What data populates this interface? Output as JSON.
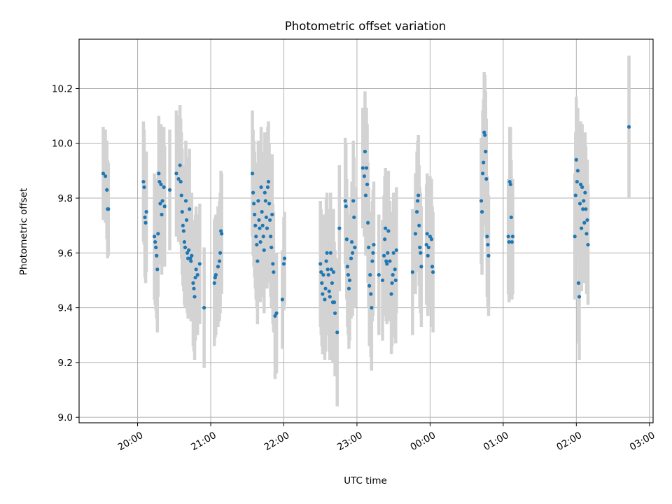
{
  "chart_data": {
    "type": "scatter",
    "title": "Photometric offset variation",
    "xlabel": "UTC time",
    "ylabel": "Photometric offset",
    "x_unit": "UTC time (hours after midnight; 24+ is next day)",
    "xlim": [
      19.2,
      27.05
    ],
    "ylim": [
      8.98,
      10.38
    ],
    "grid": true,
    "x_ticks": [
      {
        "value": 20,
        "label": "20:00"
      },
      {
        "value": 21,
        "label": "21:00"
      },
      {
        "value": 22,
        "label": "22:00"
      },
      {
        "value": 23,
        "label": "23:00"
      },
      {
        "value": 24,
        "label": "00:00"
      },
      {
        "value": 25,
        "label": "01:00"
      },
      {
        "value": 26,
        "label": "02:00"
      },
      {
        "value": 27,
        "label": "03:00"
      }
    ],
    "y_ticks": [
      {
        "value": 9.0,
        "label": "9.0"
      },
      {
        "value": 9.2,
        "label": "9.2"
      },
      {
        "value": 9.4,
        "label": "9.4"
      },
      {
        "value": 9.6,
        "label": "9.6"
      },
      {
        "value": 9.8,
        "label": "9.8"
      },
      {
        "value": 10.0,
        "label": "10.0"
      },
      {
        "value": 10.2,
        "label": "10.2"
      }
    ],
    "colors": {
      "points": "#1f77b4",
      "error_bars": "#d3d3d3",
      "grid": "#b0b0b0"
    },
    "series": [
      {
        "points": [
          [
            19.53,
            9.89,
            0.17
          ],
          [
            19.56,
            9.88,
            0.17
          ],
          [
            19.58,
            9.83,
            0.18
          ],
          [
            19.59,
            9.76,
            0.18
          ],
          [
            19.6,
            9.76,
            0.17
          ],
          [
            20.08,
            9.86,
            0.22
          ],
          [
            20.09,
            9.84,
            0.21
          ],
          [
            20.1,
            9.73,
            0.22
          ],
          [
            20.11,
            9.71,
            0.22
          ],
          [
            20.12,
            9.75,
            0.22
          ],
          [
            20.23,
            9.66,
            0.23
          ],
          [
            20.24,
            9.64,
            0.23
          ],
          [
            20.25,
            9.62,
            0.23
          ],
          [
            20.26,
            9.59,
            0.23
          ],
          [
            20.27,
            9.54,
            0.23
          ],
          [
            20.28,
            9.67,
            0.23
          ],
          [
            20.29,
            9.89,
            0.21
          ],
          [
            20.3,
            9.86,
            0.21
          ],
          [
            20.31,
            9.78,
            0.22
          ],
          [
            20.32,
            9.85,
            0.22
          ],
          [
            20.33,
            9.74,
            0.22
          ],
          [
            20.34,
            9.79,
            0.22
          ],
          [
            20.36,
            9.84,
            0.22
          ],
          [
            20.37,
            9.77,
            0.22
          ],
          [
            20.44,
            9.83,
            0.22
          ],
          [
            20.53,
            9.89,
            0.23
          ],
          [
            20.56,
            9.87,
            0.23
          ],
          [
            20.58,
            9.92,
            0.22
          ],
          [
            20.59,
            9.86,
            0.23
          ],
          [
            20.6,
            9.81,
            0.23
          ],
          [
            20.61,
            9.75,
            0.23
          ],
          [
            20.62,
            9.7,
            0.22
          ],
          [
            20.63,
            9.68,
            0.22
          ],
          [
            20.64,
            9.64,
            0.23
          ],
          [
            20.65,
            9.62,
            0.22
          ],
          [
            20.66,
            9.79,
            0.22
          ],
          [
            20.67,
            9.72,
            0.23
          ],
          [
            20.68,
            9.6,
            0.22
          ],
          [
            20.69,
            9.58,
            0.22
          ],
          [
            20.7,
            9.61,
            0.22
          ],
          [
            20.71,
            9.76,
            0.22
          ],
          [
            20.72,
            9.58,
            0.22
          ],
          [
            20.73,
            9.57,
            0.22
          ],
          [
            20.74,
            9.59,
            0.23
          ],
          [
            20.76,
            9.49,
            0.23
          ],
          [
            20.77,
            9.47,
            0.23
          ],
          [
            20.78,
            9.44,
            0.23
          ],
          [
            20.79,
            9.51,
            0.23
          ],
          [
            20.8,
            9.54,
            0.23
          ],
          [
            20.82,
            9.52,
            0.22
          ],
          [
            20.85,
            9.56,
            0.22
          ],
          [
            20.91,
            9.4,
            0.22
          ],
          [
            21.05,
            9.49,
            0.23
          ],
          [
            21.06,
            9.51,
            0.22
          ],
          [
            21.07,
            9.52,
            0.22
          ],
          [
            21.1,
            9.55,
            0.22
          ],
          [
            21.12,
            9.57,
            0.22
          ],
          [
            21.13,
            9.6,
            0.22
          ],
          [
            21.14,
            9.68,
            0.22
          ],
          [
            21.15,
            9.67,
            0.22
          ],
          [
            21.57,
            9.89,
            0.23
          ],
          [
            21.58,
            9.82,
            0.23
          ],
          [
            21.59,
            9.78,
            0.23
          ],
          [
            21.6,
            9.74,
            0.23
          ],
          [
            21.61,
            9.7,
            0.23
          ],
          [
            21.62,
            9.66,
            0.23
          ],
          [
            21.63,
            9.63,
            0.23
          ],
          [
            21.64,
            9.57,
            0.23
          ],
          [
            21.65,
            9.79,
            0.22
          ],
          [
            21.66,
            9.72,
            0.22
          ],
          [
            21.67,
            9.69,
            0.23
          ],
          [
            21.68,
            9.64,
            0.22
          ],
          [
            21.69,
            9.84,
            0.22
          ],
          [
            21.7,
            9.75,
            0.22
          ],
          [
            21.71,
            9.7,
            0.22
          ],
          [
            21.72,
            9.66,
            0.22
          ],
          [
            21.73,
            9.61,
            0.23
          ],
          [
            21.74,
            9.82,
            0.22
          ],
          [
            21.75,
            9.79,
            0.22
          ],
          [
            21.76,
            9.73,
            0.22
          ],
          [
            21.77,
            9.69,
            0.22
          ],
          [
            21.78,
            9.84,
            0.22
          ],
          [
            21.79,
            9.86,
            0.22
          ],
          [
            21.8,
            9.78,
            0.22
          ],
          [
            21.81,
            9.72,
            0.23
          ],
          [
            21.82,
            9.66,
            0.22
          ],
          [
            21.83,
            9.62,
            0.22
          ],
          [
            21.84,
            9.74,
            0.22
          ],
          [
            21.85,
            9.56,
            0.22
          ],
          [
            21.86,
            9.53,
            0.22
          ],
          [
            21.88,
            9.37,
            0.23
          ],
          [
            21.9,
            9.38,
            0.22
          ],
          [
            21.98,
            9.43,
            0.18
          ],
          [
            22.0,
            9.56,
            0.17
          ],
          [
            22.01,
            9.58,
            0.17
          ],
          [
            22.5,
            9.56,
            0.23
          ],
          [
            22.51,
            9.53,
            0.23
          ],
          [
            22.52,
            9.49,
            0.23
          ],
          [
            22.53,
            9.45,
            0.22
          ],
          [
            22.54,
            9.52,
            0.22
          ],
          [
            22.56,
            9.43,
            0.22
          ],
          [
            22.57,
            9.47,
            0.23
          ],
          [
            22.58,
            9.57,
            0.23
          ],
          [
            22.59,
            9.6,
            0.22
          ],
          [
            22.6,
            9.54,
            0.22
          ],
          [
            22.61,
            9.52,
            0.22
          ],
          [
            22.62,
            9.46,
            0.22
          ],
          [
            22.63,
            9.44,
            0.23
          ],
          [
            22.64,
            9.6,
            0.22
          ],
          [
            22.65,
            9.54,
            0.22
          ],
          [
            22.66,
            9.49,
            0.23
          ],
          [
            22.67,
            9.42,
            0.22
          ],
          [
            22.68,
            9.53,
            0.23
          ],
          [
            22.69,
            9.42,
            0.22
          ],
          [
            22.7,
            9.38,
            0.23
          ],
          [
            22.73,
            9.31,
            0.27
          ],
          [
            22.76,
            9.69,
            0.23
          ],
          [
            22.84,
            9.79,
            0.23
          ],
          [
            22.85,
            9.77,
            0.23
          ],
          [
            22.86,
            9.65,
            0.22
          ],
          [
            22.87,
            9.55,
            0.22
          ],
          [
            22.88,
            9.52,
            0.22
          ],
          [
            22.89,
            9.47,
            0.22
          ],
          [
            22.9,
            9.5,
            0.22
          ],
          [
            22.92,
            9.58,
            0.22
          ],
          [
            22.93,
            9.64,
            0.22
          ],
          [
            22.94,
            9.6,
            0.23
          ],
          [
            22.95,
            9.79,
            0.22
          ],
          [
            22.96,
            9.73,
            0.22
          ],
          [
            22.97,
            9.62,
            0.22
          ],
          [
            23.08,
            9.91,
            0.22
          ],
          [
            23.1,
            9.88,
            0.22
          ],
          [
            23.11,
            9.97,
            0.22
          ],
          [
            23.12,
            9.81,
            0.22
          ],
          [
            23.13,
            9.91,
            0.22
          ],
          [
            23.14,
            9.85,
            0.22
          ],
          [
            23.15,
            9.71,
            0.22
          ],
          [
            23.16,
            9.62,
            0.22
          ],
          [
            23.17,
            9.48,
            0.22
          ],
          [
            23.18,
            9.52,
            0.23
          ],
          [
            23.19,
            9.45,
            0.23
          ],
          [
            23.2,
            9.4,
            0.23
          ],
          [
            23.21,
            9.57,
            0.22
          ],
          [
            23.22,
            9.6,
            0.23
          ],
          [
            23.23,
            9.63,
            0.23
          ],
          [
            23.3,
            9.52,
            0.22
          ],
          [
            23.35,
            9.5,
            0.22
          ],
          [
            23.37,
            9.59,
            0.22
          ],
          [
            23.38,
            9.65,
            0.23
          ],
          [
            23.39,
            9.69,
            0.22
          ],
          [
            23.4,
            9.57,
            0.22
          ],
          [
            23.41,
            9.56,
            0.22
          ],
          [
            23.42,
            9.6,
            0.22
          ],
          [
            23.43,
            9.68,
            0.22
          ],
          [
            23.45,
            9.57,
            0.22
          ],
          [
            23.47,
            9.45,
            0.22
          ],
          [
            23.48,
            9.49,
            0.23
          ],
          [
            23.49,
            9.52,
            0.23
          ],
          [
            23.5,
            9.6,
            0.22
          ],
          [
            23.52,
            9.54,
            0.22
          ],
          [
            23.53,
            9.5,
            0.23
          ],
          [
            23.54,
            9.61,
            0.23
          ],
          [
            23.76,
            9.53,
            0.23
          ],
          [
            23.8,
            9.67,
            0.22
          ],
          [
            23.82,
            9.75,
            0.22
          ],
          [
            23.83,
            9.79,
            0.22
          ],
          [
            23.84,
            9.81,
            0.22
          ],
          [
            23.85,
            9.7,
            0.22
          ],
          [
            23.86,
            9.62,
            0.22
          ],
          [
            23.87,
            9.6,
            0.22
          ],
          [
            23.88,
            9.55,
            0.22
          ],
          [
            23.95,
            9.63,
            0.22
          ],
          [
            23.96,
            9.67,
            0.22
          ],
          [
            23.97,
            9.59,
            0.22
          ],
          [
            23.98,
            9.62,
            0.22
          ],
          [
            24.0,
            9.66,
            0.22
          ],
          [
            24.02,
            9.65,
            0.22
          ],
          [
            24.03,
            9.55,
            0.22
          ],
          [
            24.04,
            9.53,
            0.22
          ],
          [
            24.7,
            9.79,
            0.23
          ],
          [
            24.71,
            9.75,
            0.23
          ],
          [
            24.72,
            9.89,
            0.23
          ],
          [
            24.73,
            9.93,
            0.23
          ],
          [
            24.74,
            10.04,
            0.22
          ],
          [
            24.75,
            10.03,
            0.22
          ],
          [
            24.76,
            9.97,
            0.22
          ],
          [
            24.77,
            9.87,
            0.22
          ],
          [
            24.78,
            9.66,
            0.22
          ],
          [
            24.79,
            9.63,
            0.23
          ],
          [
            24.8,
            9.59,
            0.22
          ],
          [
            25.07,
            9.66,
            0.21
          ],
          [
            25.08,
            9.64,
            0.22
          ],
          [
            25.09,
            9.86,
            0.2
          ],
          [
            25.1,
            9.85,
            0.21
          ],
          [
            25.11,
            9.73,
            0.21
          ],
          [
            25.12,
            9.64,
            0.21
          ],
          [
            25.13,
            9.66,
            0.21
          ],
          [
            25.98,
            9.66,
            0.23
          ],
          [
            25.99,
            9.81,
            0.23
          ],
          [
            26.0,
            9.94,
            0.23
          ],
          [
            26.01,
            9.86,
            0.23
          ],
          [
            26.02,
            9.9,
            0.23
          ],
          [
            26.03,
            9.49,
            0.22
          ],
          [
            26.04,
            9.44,
            0.23
          ],
          [
            26.05,
            9.78,
            0.23
          ],
          [
            26.06,
            9.85,
            0.23
          ],
          [
            26.07,
            9.69,
            0.23
          ],
          [
            26.08,
            9.84,
            0.23
          ],
          [
            26.09,
            9.76,
            0.23
          ],
          [
            26.1,
            9.79,
            0.23
          ],
          [
            26.11,
            9.71,
            0.22
          ],
          [
            26.12,
            9.82,
            0.22
          ],
          [
            26.13,
            9.76,
            0.23
          ],
          [
            26.14,
            9.67,
            0.22
          ],
          [
            26.15,
            9.72,
            0.22
          ],
          [
            26.16,
            9.63,
            0.22
          ],
          [
            26.72,
            10.06,
            0.26
          ]
        ]
      }
    ]
  }
}
